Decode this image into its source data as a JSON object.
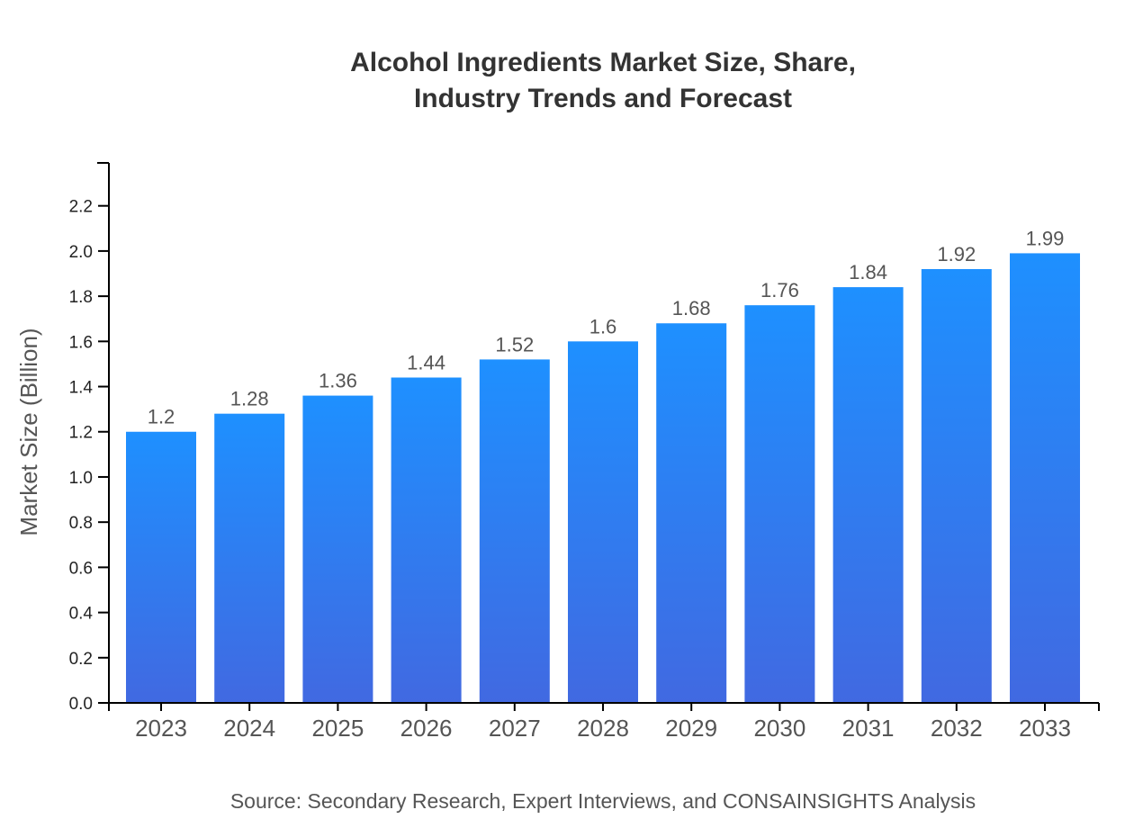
{
  "chart_data": {
    "type": "bar",
    "title_lines": [
      "Alcohol Ingredients Market Size, Share,",
      "Industry Trends and Forecast"
    ],
    "xlabel": "",
    "ylabel": "Market Size (Billion)",
    "categories": [
      "2023",
      "2024",
      "2025",
      "2026",
      "2027",
      "2028",
      "2029",
      "2030",
      "2031",
      "2032",
      "2033"
    ],
    "values": [
      1.2,
      1.28,
      1.36,
      1.44,
      1.52,
      1.6,
      1.68,
      1.76,
      1.84,
      1.92,
      1.99
    ],
    "ylim": [
      0,
      2.39
    ],
    "yticks": [
      "0.0",
      "0.2",
      "0.4",
      "0.6",
      "0.8",
      "1.0",
      "1.2",
      "1.4",
      "1.6",
      "1.8",
      "2.0",
      "2.2"
    ],
    "grid": false,
    "bar_gradient": {
      "top": "#1E90FF",
      "bottom": "#4169E1"
    },
    "source": "Source: Secondary Research, Expert Interviews, and CONSAINSIGHTS Analysis"
  }
}
